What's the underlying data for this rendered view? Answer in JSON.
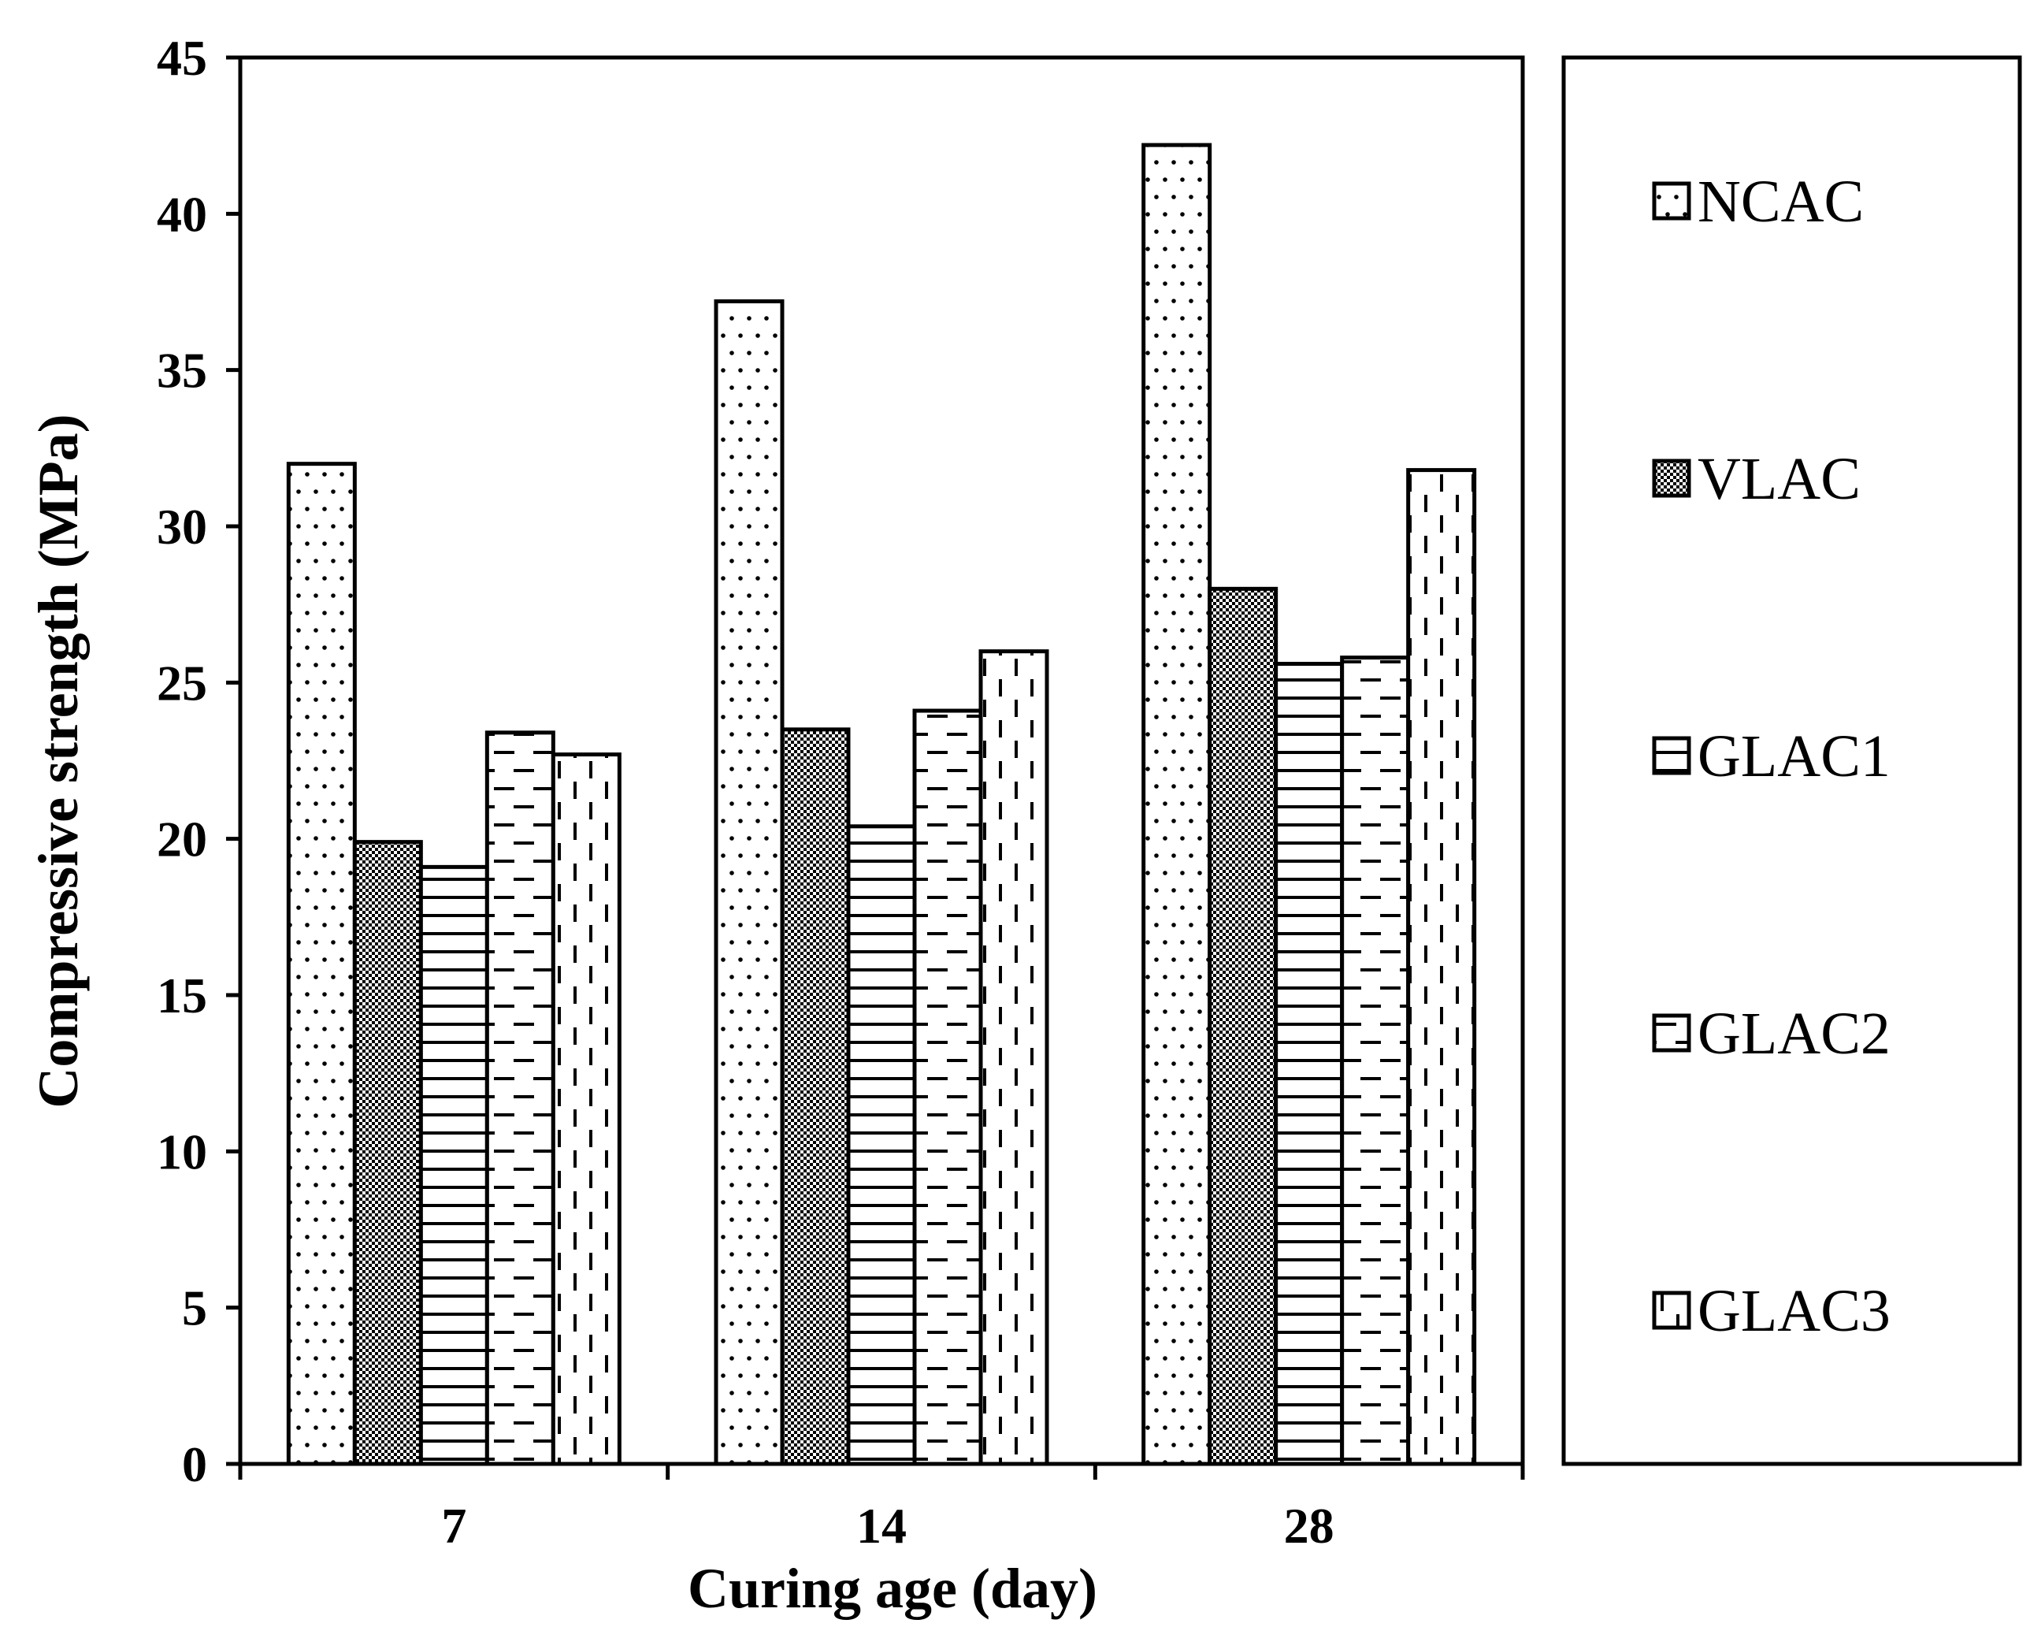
{
  "chart_data": {
    "type": "bar",
    "xlabel": "Curing age (day)",
    "ylabel": "Compressive strength (MPa)",
    "ylim": [
      0,
      45
    ],
    "yticks": [
      0,
      5,
      10,
      15,
      20,
      25,
      30,
      35,
      40,
      45
    ],
    "categories": [
      "7",
      "14",
      "28"
    ],
    "legend_position": "right",
    "series": [
      {
        "name": "NCAC",
        "pattern": "dots",
        "values": [
          32.0,
          37.2,
          42.2
        ]
      },
      {
        "name": "VLAC",
        "pattern": "checker",
        "values": [
          19.9,
          23.5,
          28.0
        ]
      },
      {
        "name": "GLAC1",
        "pattern": "hlines",
        "values": [
          19.1,
          20.4,
          25.6
        ]
      },
      {
        "name": "GLAC2",
        "pattern": "hdashes",
        "values": [
          23.4,
          24.1,
          25.8
        ]
      },
      {
        "name": "GLAC3",
        "pattern": "vdashes",
        "values": [
          22.7,
          26.0,
          31.8
        ]
      }
    ]
  }
}
